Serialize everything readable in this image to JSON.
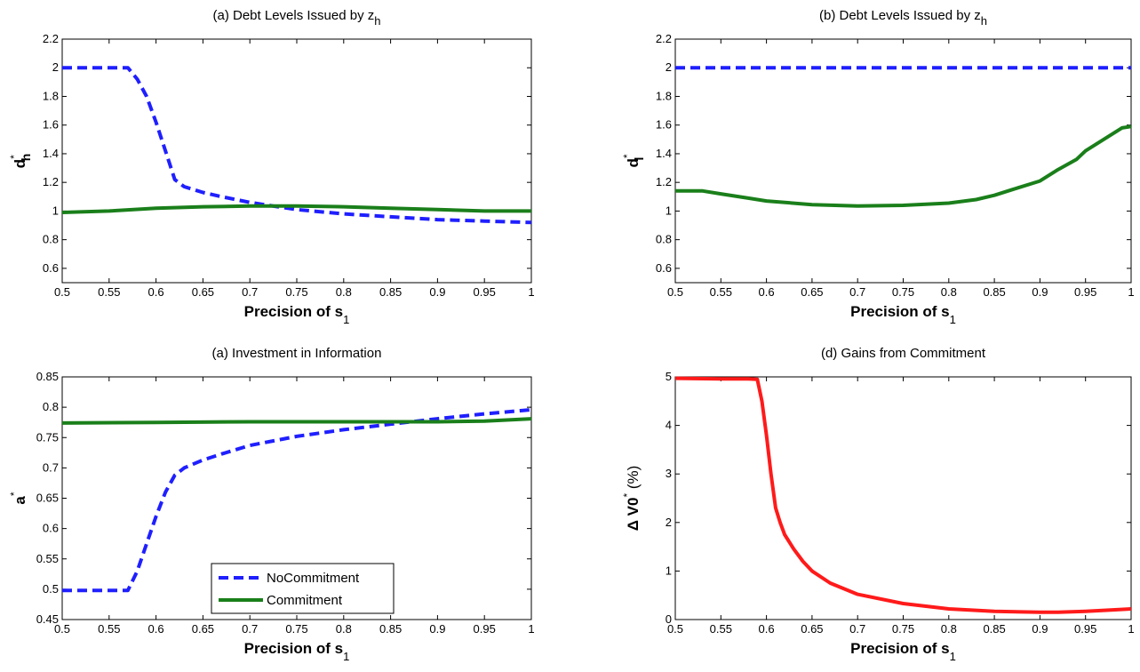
{
  "chart_data": [
    {
      "type": "line",
      "title": "(a) Debt Levels Issued by z",
      "title_sub": "h",
      "xlabel": "Precision of s",
      "xlabel_sub": "1",
      "ylabel": "d",
      "ylabel_sup": "*",
      "ylabel_sub": "h",
      "xlim": [
        0.5,
        1
      ],
      "ylim": [
        0.5,
        2.2
      ],
      "xticks": [
        "0.5",
        "0.55",
        "0.6",
        "0.65",
        "0.7",
        "0.75",
        "0.8",
        "0.85",
        "0.9",
        "0.95",
        "1"
      ],
      "yticks": [
        "0.6",
        "0.8",
        "1",
        "1.2",
        "1.4",
        "1.6",
        "1.8",
        "2",
        "2.2"
      ],
      "series": [
        {
          "name": "NoCommitment",
          "style": "dashed",
          "color": "#1f1fff",
          "x": [
            0.5,
            0.52,
            0.54,
            0.56,
            0.57,
            0.58,
            0.59,
            0.6,
            0.61,
            0.62,
            0.63,
            0.65,
            0.67,
            0.7,
            0.73,
            0.75,
            0.8,
            0.85,
            0.9,
            0.95,
            1.0
          ],
          "y": [
            2.0,
            2.0,
            2.0,
            2.0,
            2.0,
            1.92,
            1.8,
            1.62,
            1.42,
            1.22,
            1.17,
            1.13,
            1.1,
            1.06,
            1.03,
            1.01,
            0.98,
            0.96,
            0.94,
            0.93,
            0.92
          ]
        },
        {
          "name": "Commitment",
          "style": "solid",
          "color": "#1a7f1a",
          "x": [
            0.5,
            0.55,
            0.6,
            0.65,
            0.7,
            0.75,
            0.8,
            0.85,
            0.9,
            0.95,
            1.0
          ],
          "y": [
            0.99,
            1.0,
            1.02,
            1.03,
            1.035,
            1.035,
            1.03,
            1.02,
            1.01,
            1.0,
            1.0
          ]
        }
      ]
    },
    {
      "type": "line",
      "title": "(b) Debt Levels Issued by z",
      "title_sub": "h",
      "xlabel": "Precision of s",
      "xlabel_sub": "1",
      "ylabel": "d",
      "ylabel_sup": "*",
      "ylabel_sub": "l",
      "xlim": [
        0.5,
        1
      ],
      "ylim": [
        0.5,
        2.2
      ],
      "xticks": [
        "0.5",
        "0.55",
        "0.6",
        "0.65",
        "0.7",
        "0.75",
        "0.8",
        "0.85",
        "0.9",
        "0.95",
        "1"
      ],
      "yticks": [
        "0.6",
        "0.8",
        "1",
        "1.2",
        "1.4",
        "1.6",
        "1.8",
        "2",
        "2.2"
      ],
      "series": [
        {
          "name": "NoCommitment",
          "style": "dashed",
          "color": "#1f1fff",
          "x": [
            0.5,
            1.0
          ],
          "y": [
            2.0,
            2.0
          ]
        },
        {
          "name": "Commitment",
          "style": "solid",
          "color": "#1a7f1a",
          "x": [
            0.5,
            0.53,
            0.55,
            0.58,
            0.6,
            0.65,
            0.7,
            0.75,
            0.8,
            0.83,
            0.85,
            0.87,
            0.9,
            0.92,
            0.94,
            0.95,
            0.97,
            0.99,
            1.0
          ],
          "y": [
            1.14,
            1.14,
            1.12,
            1.09,
            1.07,
            1.045,
            1.035,
            1.04,
            1.055,
            1.08,
            1.11,
            1.15,
            1.21,
            1.29,
            1.36,
            1.42,
            1.5,
            1.58,
            1.59
          ]
        }
      ]
    },
    {
      "type": "line",
      "title": "(a) Investment in Information",
      "xlabel": "Precision of s",
      "xlabel_sub": "1",
      "ylabel": "a",
      "ylabel_sup": "*",
      "xlim": [
        0.5,
        1
      ],
      "ylim": [
        0.45,
        0.85
      ],
      "xticks": [
        "0.5",
        "0.55",
        "0.6",
        "0.65",
        "0.7",
        "0.75",
        "0.8",
        "0.85",
        "0.9",
        "0.95",
        "1"
      ],
      "yticks": [
        "0.45",
        "0.5",
        "0.55",
        "0.6",
        "0.65",
        "0.7",
        "0.75",
        "0.8",
        "0.85"
      ],
      "legend": {
        "placement": "bottom-center",
        "entries": [
          "NoCommitment",
          "Commitment"
        ]
      },
      "series": [
        {
          "name": "NoCommitment",
          "style": "dashed",
          "color": "#1f1fff",
          "x": [
            0.5,
            0.52,
            0.54,
            0.56,
            0.57,
            0.58,
            0.59,
            0.6,
            0.61,
            0.62,
            0.63,
            0.65,
            0.67,
            0.7,
            0.75,
            0.8,
            0.85,
            0.9,
            0.95,
            1.0
          ],
          "y": [
            0.498,
            0.498,
            0.498,
            0.498,
            0.498,
            0.53,
            0.575,
            0.62,
            0.66,
            0.688,
            0.7,
            0.713,
            0.723,
            0.737,
            0.752,
            0.763,
            0.772,
            0.781,
            0.789,
            0.796
          ]
        },
        {
          "name": "Commitment",
          "style": "solid",
          "color": "#1a7f1a",
          "x": [
            0.5,
            0.6,
            0.7,
            0.8,
            0.9,
            0.95,
            1.0
          ],
          "y": [
            0.774,
            0.775,
            0.776,
            0.776,
            0.776,
            0.777,
            0.781
          ]
        }
      ]
    },
    {
      "type": "line",
      "title": "(d) Gains from Commitment",
      "xlabel": "Precision of s",
      "xlabel_sub": "1",
      "ylabel": "Δ V0",
      "ylabel_sup": "*",
      "ylabel_suffix": " (%)",
      "xlim": [
        0.5,
        1
      ],
      "ylim": [
        0,
        5
      ],
      "xticks": [
        "0.5",
        "0.55",
        "0.6",
        "0.65",
        "0.7",
        "0.75",
        "0.8",
        "0.85",
        "0.9",
        "0.95",
        "1"
      ],
      "yticks": [
        "0",
        "1",
        "2",
        "3",
        "4",
        "5"
      ],
      "series": [
        {
          "name": "Gains",
          "style": "solid",
          "color": "#ff1a1a",
          "x": [
            0.5,
            0.55,
            0.58,
            0.59,
            0.595,
            0.6,
            0.605,
            0.61,
            0.615,
            0.62,
            0.63,
            0.64,
            0.65,
            0.67,
            0.7,
            0.75,
            0.8,
            0.85,
            0.9,
            0.92,
            0.95,
            0.98,
            1.0
          ],
          "y": [
            4.97,
            4.96,
            4.96,
            4.95,
            4.5,
            3.8,
            3.0,
            2.3,
            2.0,
            1.75,
            1.45,
            1.2,
            1.0,
            0.75,
            0.52,
            0.33,
            0.22,
            0.17,
            0.15,
            0.15,
            0.17,
            0.2,
            0.22
          ]
        }
      ]
    }
  ]
}
